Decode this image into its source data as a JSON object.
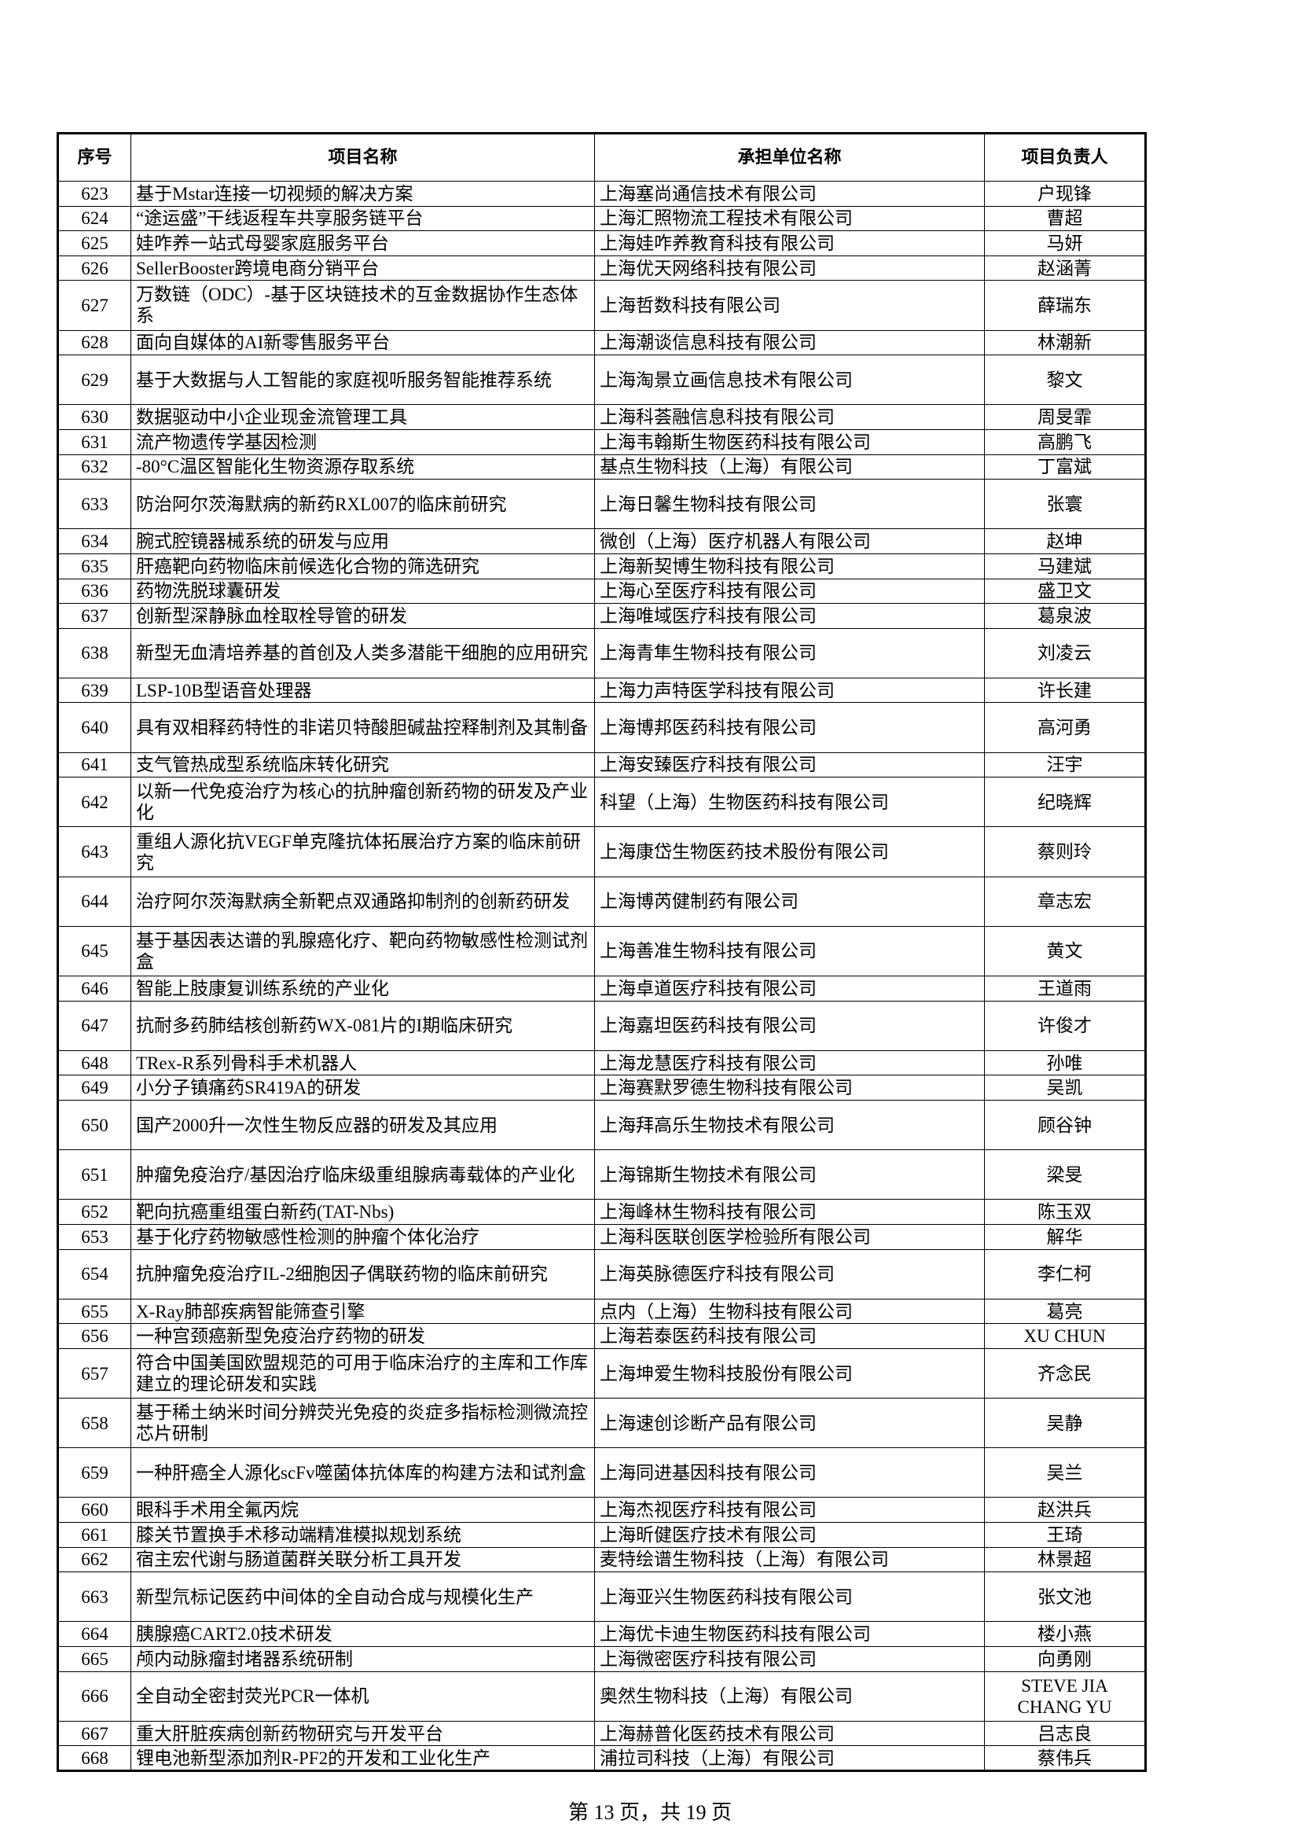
{
  "table": {
    "header": [
      "序号",
      "项目名称",
      "承担单位名称",
      "项目负责人"
    ],
    "rows": [
      [
        623,
        "基于Mstar连接一切视频的解决方案",
        "上海塞尚通信技术有限公司",
        "户现锋"
      ],
      [
        624,
        "“途运盛”干线返程车共享服务链平台",
        "上海汇照物流工程技术有限公司",
        "曹超"
      ],
      [
        625,
        "娃咋养一站式母婴家庭服务平台",
        "上海娃咋养教育科技有限公司",
        "马妍"
      ],
      [
        626,
        "SellerBooster跨境电商分销平台",
        "上海优天网络科技有限公司",
        "赵涵菁"
      ],
      [
        627,
        "万数链（ODC）-基于区块链技术的互金数据协作生态体系",
        "上海哲数科技有限公司",
        "薛瑞东"
      ],
      [
        628,
        "面向自媒体的AI新零售服务平台",
        "上海潮谈信息科技有限公司",
        "林潮新"
      ],
      [
        629,
        "基于大数据与人工智能的家庭视听服务智能推荐系统",
        "上海淘景立画信息技术有限公司",
        "黎文"
      ],
      [
        630,
        "数据驱动中小企业现金流管理工具",
        "上海科荟融信息科技有限公司",
        "周旻霏"
      ],
      [
        631,
        "流产物遗传学基因检测",
        "上海韦翰斯生物医药科技有限公司",
        "高鹏飞"
      ],
      [
        632,
        "-80°C温区智能化生物资源存取系统",
        "基点生物科技（上海）有限公司",
        "丁富斌"
      ],
      [
        633,
        "防治阿尔茨海默病的新药RXL007的临床前研究",
        "上海日馨生物科技有限公司",
        "张寰"
      ],
      [
        634,
        "腕式腔镜器械系统的研发与应用",
        "微创（上海）医疗机器人有限公司",
        "赵坤"
      ],
      [
        635,
        "肝癌靶向药物临床前候选化合物的筛选研究",
        "上海新契博生物科技有限公司",
        "马建斌"
      ],
      [
        636,
        "药物洗脱球囊研发",
        "上海心至医疗科技有限公司",
        "盛卫文"
      ],
      [
        637,
        "创新型深静脉血栓取栓导管的研发",
        "上海唯域医疗科技有限公司",
        "葛泉波"
      ],
      [
        638,
        "新型无血清培养基的首创及人类多潜能干细胞的应用研究",
        "上海青隼生物科技有限公司",
        "刘凌云"
      ],
      [
        639,
        "LSP-10B型语音处理器",
        "上海力声特医学科技有限公司",
        "许长建"
      ],
      [
        640,
        "具有双相释药特性的非诺贝特酸胆碱盐控释制剂及其制备",
        "上海博邦医药科技有限公司",
        "高河勇"
      ],
      [
        641,
        "支气管热成型系统临床转化研究",
        "上海安臻医疗科技有限公司",
        "汪宇"
      ],
      [
        642,
        "以新一代免疫治疗为核心的抗肿瘤创新药物的研发及产业化",
        "科望（上海）生物医药科技有限公司",
        "纪晓辉"
      ],
      [
        643,
        "重组人源化抗VEGF单克隆抗体拓展治疗方案的临床前研究",
        "上海康岱生物医药技术股份有限公司",
        "蔡则玲"
      ],
      [
        644,
        "治疗阿尔茨海默病全新靶点双通路抑制剂的创新药研发",
        "上海博芮健制药有限公司",
        "章志宏"
      ],
      [
        645,
        "基于基因表达谱的乳腺癌化疗、靶向药物敏感性检测试剂盒",
        "上海善准生物科技有限公司",
        "黄文"
      ],
      [
        646,
        "智能上肢康复训练系统的产业化",
        "上海卓道医疗科技有限公司",
        "王道雨"
      ],
      [
        647,
        "抗耐多药肺结核创新药WX-081片的I期临床研究",
        "上海嘉坦医药科技有限公司",
        "许俊才"
      ],
      [
        648,
        "TRex-R系列骨科手术机器人",
        "上海龙慧医疗科技有限公司",
        "孙唯"
      ],
      [
        649,
        "小分子镇痛药SR419A的研发",
        "上海赛默罗德生物科技有限公司",
        "吴凯"
      ],
      [
        650,
        "国产2000升一次性生物反应器的研发及其应用",
        "上海拜高乐生物技术有限公司",
        "顾谷钟"
      ],
      [
        651,
        "肿瘤免疫治疗/基因治疗临床级重组腺病毒载体的产业化",
        "上海锦斯生物技术有限公司",
        "梁旻"
      ],
      [
        652,
        "靶向抗癌重组蛋白新药(TAT-Nbs)",
        "上海峰林生物科技有限公司",
        "陈玉双"
      ],
      [
        653,
        "基于化疗药物敏感性检测的肿瘤个体化治疗",
        "上海科医联创医学检验所有限公司",
        "解华"
      ],
      [
        654,
        "抗肿瘤免疫治疗IL-2细胞因子偶联药物的临床前研究",
        "上海英脉德医疗科技有限公司",
        "李仁柯"
      ],
      [
        655,
        "X-Ray肺部疾病智能筛查引擎",
        "点内（上海）生物科技有限公司",
        "葛亮"
      ],
      [
        656,
        "一种宫颈癌新型免疫治疗药物的研发",
        "上海若泰医药科技有限公司",
        "XU CHUN"
      ],
      [
        657,
        "符合中国美国欧盟规范的可用于临床治疗的主库和工作库建立的理论研发和实践",
        "上海坤爱生物科技股份有限公司",
        "齐念民"
      ],
      [
        658,
        "基于稀土纳米时间分辨荧光免疫的炎症多指标检测微流控芯片研制",
        "上海速创诊断产品有限公司",
        "吴静"
      ],
      [
        659,
        "一种肝癌全人源化scFv噬菌体抗体库的构建方法和试剂盒",
        "上海同进基因科技有限公司",
        "吴兰"
      ],
      [
        660,
        "眼科手术用全氟丙烷",
        "上海杰视医疗科技有限公司",
        "赵洪兵"
      ],
      [
        661,
        "膝关节置换手术移动端精准模拟规划系统",
        "上海昕健医疗技术有限公司",
        "王琦"
      ],
      [
        662,
        "宿主宏代谢与肠道菌群关联分析工具开发",
        "麦特绘谱生物科技（上海）有限公司",
        "林景超"
      ],
      [
        663,
        "新型氘标记医药中间体的全自动合成与规模化生产",
        "上海亚兴生物医药科技有限公司",
        "张文池"
      ],
      [
        664,
        "胰腺癌CART2.0技术研发",
        "上海优卡迪生物医药科技有限公司",
        "楼小燕"
      ],
      [
        665,
        "颅内动脉瘤封堵器系统研制",
        "上海微密医疗科技有限公司",
        "向勇刚"
      ],
      [
        666,
        "全自动全密封荧光PCR一体机",
        "奥然生物科技（上海）有限公司",
        "STEVE JIA CHANG YU"
      ],
      [
        667,
        "重大肝脏疾病创新药物研究与开发平台",
        "上海赫普化医药技术有限公司",
        "吕志良"
      ],
      [
        668,
        "锂电池新型添加剂R-PF2的开发和工业化生产",
        "浦拉司科技（上海）有限公司",
        "蔡伟兵"
      ]
    ]
  },
  "footer": "第 13 页，共 19 页"
}
